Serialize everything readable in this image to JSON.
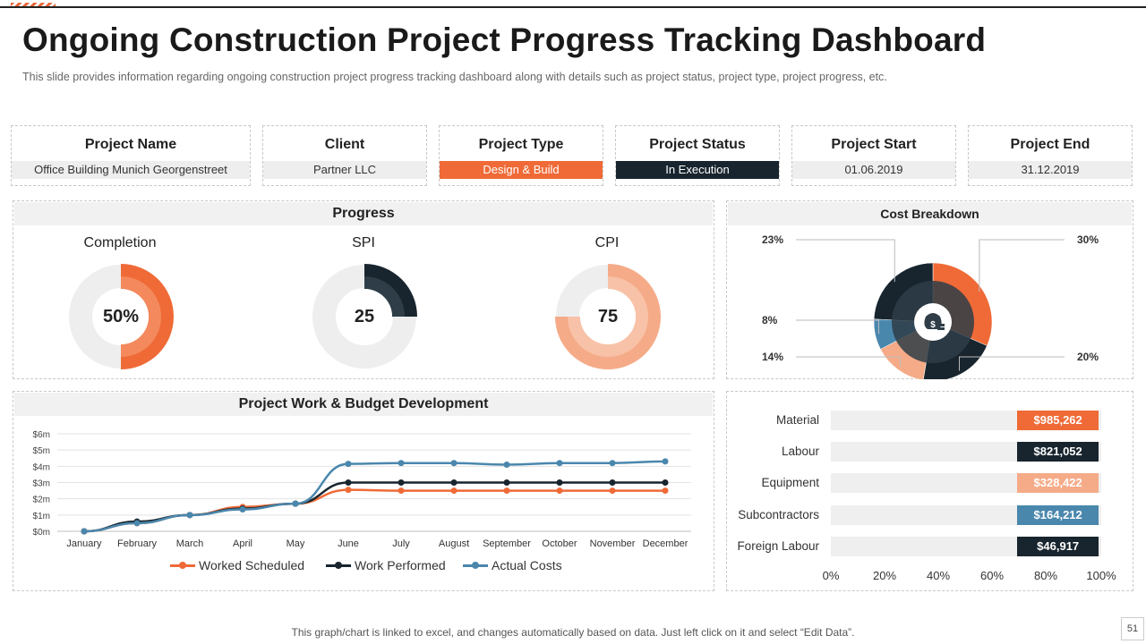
{
  "header": {
    "title": "Ongoing Construction Project Progress Tracking Dashboard",
    "subtitle": "This slide provides information regarding ongoing construction project progress tracking dashboard along with details such as project status, project type, project progress, etc."
  },
  "info": [
    {
      "label": "Project Name",
      "value": "Office Building Munich Georgenstreet"
    },
    {
      "label": "Client",
      "value": "Partner LLC"
    },
    {
      "label": "Project Type",
      "value": "Design & Build"
    },
    {
      "label": "Project Status",
      "value": "In Execution"
    },
    {
      "label": "Project Start",
      "value": "01.06.2019"
    },
    {
      "label": "Project End",
      "value": "31.12.2019"
    }
  ],
  "progress": {
    "title": "Progress",
    "completion": {
      "label": "Completion",
      "display": "50%",
      "fraction": 0.5
    },
    "spi": {
      "label": "SPI",
      "display": "25",
      "fraction": 0.25
    },
    "cpi": {
      "label": "CPI",
      "display": "75",
      "fraction": 0.75
    }
  },
  "colors": {
    "orange": "#ef6a37",
    "dark": "#18252e",
    "peach": "#f5ab88",
    "blue": "#4a87ad",
    "slate": "#2e3d47",
    "grey": "#efefef"
  },
  "icons": {
    "cost_center": "money-bag-icon"
  },
  "chart_data": [
    {
      "type": "pie",
      "title": "Cost Breakdown",
      "categories": [
        "Material",
        "Labour",
        "Equipment",
        "Subcontractors",
        "Foreign Labour"
      ],
      "values": [
        30,
        20,
        14,
        8,
        23
      ],
      "labels": [
        "30%",
        "20%",
        "14%",
        "8%",
        "23%"
      ],
      "colors": [
        "#ef6a37",
        "#18252e",
        "#f5ab88",
        "#4a87ad",
        "#18252e"
      ]
    },
    {
      "type": "line",
      "title": "Project Work & Budget Development",
      "categories": [
        "January",
        "February",
        "March",
        "April",
        "May",
        "June",
        "July",
        "August",
        "September",
        "October",
        "November",
        "December"
      ],
      "y_ticks": [
        "$0m",
        "$1m",
        "$2m",
        "$3m",
        "$4m",
        "$5m",
        "$6m"
      ],
      "ylim": [
        0,
        6
      ],
      "series": [
        {
          "name": "Worked Scheduled",
          "color": "#ef6a37",
          "values": [
            0,
            0.5,
            1.0,
            1.5,
            1.7,
            2.55,
            2.5,
            2.5,
            2.5,
            2.5,
            2.5,
            2.5
          ]
        },
        {
          "name": "Work Performed",
          "color": "#18252e",
          "values": [
            0,
            0.6,
            1.0,
            1.4,
            1.7,
            3.0,
            3.0,
            3.0,
            3.0,
            3.0,
            3.0,
            3.0
          ]
        },
        {
          "name": "Actual Costs",
          "color": "#4a87ad",
          "values": [
            0,
            0.5,
            1.0,
            1.35,
            1.7,
            4.15,
            4.2,
            4.2,
            4.1,
            4.2,
            4.2,
            4.3
          ]
        }
      ]
    },
    {
      "type": "bar",
      "orientation": "horizontal",
      "categories": [
        "Material",
        "Labour",
        "Equipment",
        "Subcontractors",
        "Foreign Labour"
      ],
      "value_labels": [
        "$985,262",
        "$821,052",
        "$328,422",
        "$164,212",
        "$46,917"
      ],
      "start_pct": [
        69,
        69,
        69,
        69,
        69
      ],
      "end_pct": [
        99,
        99,
        99,
        99,
        99
      ],
      "x_ticks": [
        "0%",
        "20%",
        "40%",
        "60%",
        "80%",
        "100%"
      ],
      "colors": [
        "#ef6a37",
        "#18252e",
        "#f5ab88",
        "#4a87ad",
        "#18252e"
      ]
    }
  ],
  "footer": {
    "note": "This graph/chart is linked to excel, and changes automatically based on data. Just left click on it and select “Edit Data”.",
    "page": "51"
  }
}
